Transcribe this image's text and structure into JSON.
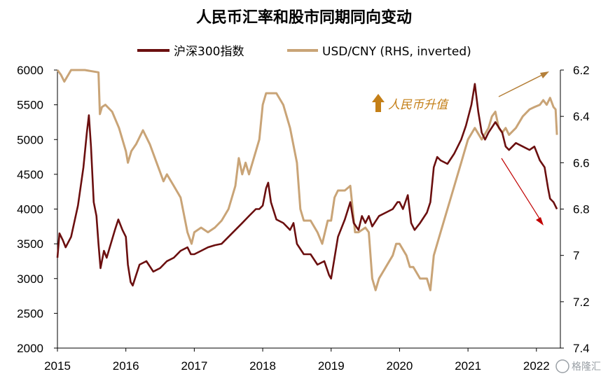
{
  "chart_data": {
    "type": "line",
    "title": "人民币汇率和股市同期同向变动",
    "x_ticks": [
      "2015",
      "2016",
      "2017",
      "2018",
      "2019",
      "2020",
      "2021",
      "2022"
    ],
    "xlim": [
      2015.0,
      2022.35
    ],
    "y_left": {
      "ticks": [
        "6000",
        "5500",
        "5000",
        "4500",
        "4000",
        "3500",
        "3000",
        "2500",
        "2000"
      ],
      "lim": [
        2000,
        6000
      ]
    },
    "y_right": {
      "ticks": [
        "6.2",
        "6.4",
        "6.6",
        "6.8",
        "7",
        "7.2",
        "7.4"
      ],
      "lim": [
        6.2,
        7.4
      ],
      "inverted": true
    },
    "grid": false,
    "legend_position": "top-center",
    "series": [
      {
        "name": "沪深300指数",
        "axis": "left",
        "color": "#6b0f0f",
        "points": [
          [
            2015.0,
            3300
          ],
          [
            2015.03,
            3650
          ],
          [
            2015.08,
            3550
          ],
          [
            2015.12,
            3450
          ],
          [
            2015.2,
            3600
          ],
          [
            2015.3,
            4050
          ],
          [
            2015.38,
            4600
          ],
          [
            2015.43,
            5100
          ],
          [
            2015.46,
            5350
          ],
          [
            2015.49,
            4900
          ],
          [
            2015.53,
            4100
          ],
          [
            2015.57,
            3900
          ],
          [
            2015.6,
            3500
          ],
          [
            2015.63,
            3150
          ],
          [
            2015.68,
            3400
          ],
          [
            2015.72,
            3300
          ],
          [
            2015.78,
            3500
          ],
          [
            2015.84,
            3700
          ],
          [
            2015.89,
            3850
          ],
          [
            2015.95,
            3700
          ],
          [
            2016.0,
            3600
          ],
          [
            2016.03,
            3200
          ],
          [
            2016.07,
            2950
          ],
          [
            2016.1,
            2900
          ],
          [
            2016.15,
            3050
          ],
          [
            2016.2,
            3200
          ],
          [
            2016.3,
            3250
          ],
          [
            2016.4,
            3100
          ],
          [
            2016.5,
            3150
          ],
          [
            2016.6,
            3250
          ],
          [
            2016.7,
            3300
          ],
          [
            2016.8,
            3400
          ],
          [
            2016.9,
            3450
          ],
          [
            2016.95,
            3350
          ],
          [
            2017.0,
            3350
          ],
          [
            2017.1,
            3400
          ],
          [
            2017.2,
            3450
          ],
          [
            2017.3,
            3480
          ],
          [
            2017.4,
            3500
          ],
          [
            2017.5,
            3600
          ],
          [
            2017.6,
            3700
          ],
          [
            2017.7,
            3800
          ],
          [
            2017.8,
            3900
          ],
          [
            2017.9,
            4000
          ],
          [
            2017.95,
            4000
          ],
          [
            2018.0,
            4050
          ],
          [
            2018.05,
            4300
          ],
          [
            2018.08,
            4380
          ],
          [
            2018.12,
            4100
          ],
          [
            2018.2,
            3850
          ],
          [
            2018.3,
            3800
          ],
          [
            2018.4,
            3700
          ],
          [
            2018.45,
            3800
          ],
          [
            2018.5,
            3500
          ],
          [
            2018.6,
            3350
          ],
          [
            2018.7,
            3350
          ],
          [
            2018.8,
            3200
          ],
          [
            2018.9,
            3250
          ],
          [
            2018.97,
            3050
          ],
          [
            2019.0,
            3000
          ],
          [
            2019.05,
            3300
          ],
          [
            2019.1,
            3600
          ],
          [
            2019.2,
            3850
          ],
          [
            2019.28,
            4100
          ],
          [
            2019.33,
            3800
          ],
          [
            2019.4,
            3700
          ],
          [
            2019.45,
            3900
          ],
          [
            2019.5,
            3800
          ],
          [
            2019.55,
            3900
          ],
          [
            2019.6,
            3750
          ],
          [
            2019.7,
            3900
          ],
          [
            2019.8,
            3950
          ],
          [
            2019.9,
            4000
          ],
          [
            2019.97,
            4100
          ],
          [
            2020.0,
            4100
          ],
          [
            2020.05,
            4000
          ],
          [
            2020.12,
            4200
          ],
          [
            2020.17,
            3800
          ],
          [
            2020.22,
            3700
          ],
          [
            2020.3,
            3800
          ],
          [
            2020.4,
            3950
          ],
          [
            2020.45,
            4100
          ],
          [
            2020.5,
            4600
          ],
          [
            2020.55,
            4750
          ],
          [
            2020.6,
            4700
          ],
          [
            2020.7,
            4650
          ],
          [
            2020.8,
            4800
          ],
          [
            2020.9,
            5000
          ],
          [
            2020.97,
            5200
          ],
          [
            2021.05,
            5500
          ],
          [
            2021.1,
            5800
          ],
          [
            2021.15,
            5400
          ],
          [
            2021.2,
            5100
          ],
          [
            2021.25,
            5000
          ],
          [
            2021.3,
            5100
          ],
          [
            2021.4,
            5250
          ],
          [
            2021.5,
            5100
          ],
          [
            2021.55,
            4900
          ],
          [
            2021.6,
            4850
          ],
          [
            2021.7,
            4950
          ],
          [
            2021.8,
            4900
          ],
          [
            2021.9,
            4850
          ],
          [
            2021.97,
            4900
          ],
          [
            2022.05,
            4700
          ],
          [
            2022.12,
            4600
          ],
          [
            2022.17,
            4300
          ],
          [
            2022.2,
            4150
          ],
          [
            2022.25,
            4100
          ],
          [
            2022.3,
            4000
          ]
        ]
      },
      {
        "name": "USD/CNY (RHS, inverted)",
        "axis": "right",
        "color": "#c9a477",
        "points": [
          [
            2015.0,
            6.2
          ],
          [
            2015.05,
            6.22
          ],
          [
            2015.1,
            6.25
          ],
          [
            2015.2,
            6.2
          ],
          [
            2015.4,
            6.2
          ],
          [
            2015.6,
            6.21
          ],
          [
            2015.62,
            6.39
          ],
          [
            2015.65,
            6.36
          ],
          [
            2015.7,
            6.35
          ],
          [
            2015.8,
            6.38
          ],
          [
            2015.9,
            6.45
          ],
          [
            2016.0,
            6.55
          ],
          [
            2016.03,
            6.6
          ],
          [
            2016.08,
            6.55
          ],
          [
            2016.15,
            6.52
          ],
          [
            2016.25,
            6.46
          ],
          [
            2016.35,
            6.52
          ],
          [
            2016.45,
            6.6
          ],
          [
            2016.55,
            6.68
          ],
          [
            2016.6,
            6.65
          ],
          [
            2016.7,
            6.7
          ],
          [
            2016.8,
            6.75
          ],
          [
            2016.9,
            6.9
          ],
          [
            2016.96,
            6.95
          ],
          [
            2017.0,
            6.9
          ],
          [
            2017.1,
            6.88
          ],
          [
            2017.2,
            6.9
          ],
          [
            2017.3,
            6.88
          ],
          [
            2017.4,
            6.85
          ],
          [
            2017.5,
            6.8
          ],
          [
            2017.55,
            6.75
          ],
          [
            2017.6,
            6.7
          ],
          [
            2017.65,
            6.58
          ],
          [
            2017.7,
            6.65
          ],
          [
            2017.75,
            6.6
          ],
          [
            2017.8,
            6.65
          ],
          [
            2017.9,
            6.55
          ],
          [
            2017.95,
            6.5
          ],
          [
            2018.0,
            6.35
          ],
          [
            2018.05,
            6.3
          ],
          [
            2018.1,
            6.3
          ],
          [
            2018.2,
            6.3
          ],
          [
            2018.3,
            6.35
          ],
          [
            2018.4,
            6.45
          ],
          [
            2018.5,
            6.6
          ],
          [
            2018.55,
            6.8
          ],
          [
            2018.6,
            6.85
          ],
          [
            2018.7,
            6.85
          ],
          [
            2018.8,
            6.9
          ],
          [
            2018.87,
            6.95
          ],
          [
            2018.95,
            6.85
          ],
          [
            2019.0,
            6.85
          ],
          [
            2019.05,
            6.75
          ],
          [
            2019.1,
            6.72
          ],
          [
            2019.2,
            6.72
          ],
          [
            2019.28,
            6.7
          ],
          [
            2019.35,
            6.9
          ],
          [
            2019.4,
            6.9
          ],
          [
            2019.5,
            6.88
          ],
          [
            2019.55,
            6.9
          ],
          [
            2019.6,
            7.1
          ],
          [
            2019.65,
            7.15
          ],
          [
            2019.7,
            7.1
          ],
          [
            2019.8,
            7.05
          ],
          [
            2019.9,
            7.0
          ],
          [
            2019.95,
            6.95
          ],
          [
            2020.0,
            6.95
          ],
          [
            2020.1,
            7.0
          ],
          [
            2020.15,
            7.05
          ],
          [
            2020.2,
            7.05
          ],
          [
            2020.3,
            7.1
          ],
          [
            2020.4,
            7.1
          ],
          [
            2020.45,
            7.15
          ],
          [
            2020.5,
            7.0
          ],
          [
            2020.6,
            6.9
          ],
          [
            2020.7,
            6.8
          ],
          [
            2020.75,
            6.75
          ],
          [
            2020.8,
            6.7
          ],
          [
            2020.9,
            6.6
          ],
          [
            2020.95,
            6.55
          ],
          [
            2021.0,
            6.5
          ],
          [
            2021.1,
            6.45
          ],
          [
            2021.2,
            6.5
          ],
          [
            2021.3,
            6.45
          ],
          [
            2021.35,
            6.4
          ],
          [
            2021.4,
            6.38
          ],
          [
            2021.45,
            6.45
          ],
          [
            2021.5,
            6.47
          ],
          [
            2021.55,
            6.45
          ],
          [
            2021.6,
            6.48
          ],
          [
            2021.7,
            6.45
          ],
          [
            2021.8,
            6.4
          ],
          [
            2021.9,
            6.37
          ],
          [
            2021.97,
            6.36
          ],
          [
            2022.05,
            6.35
          ],
          [
            2022.1,
            6.33
          ],
          [
            2022.15,
            6.35
          ],
          [
            2022.2,
            6.32
          ],
          [
            2022.25,
            6.36
          ],
          [
            2022.28,
            6.37
          ],
          [
            2022.3,
            6.48
          ]
        ]
      }
    ]
  },
  "annotation": {
    "text": "人民币升值",
    "arrow_color": "#c47f17"
  },
  "watermark": "格隆汇",
  "colors": {
    "arrow_up": "#b5803a",
    "arrow_down": "#c00000"
  }
}
